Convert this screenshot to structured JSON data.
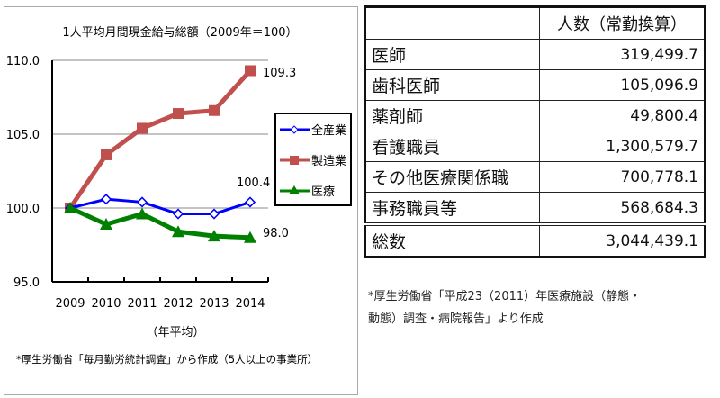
{
  "chart_data": {
    "type": "line",
    "title": "1人平均月間現金給与総額（2009年＝100）",
    "xlabel": "（年平均）",
    "categories": [
      "2009",
      "2010",
      "2011",
      "2012",
      "2013",
      "2014"
    ],
    "ylim": [
      95,
      110
    ],
    "yticks": [
      "95.0",
      "100.0",
      "105.0",
      "110.0"
    ],
    "grid": true,
    "legend_position": "right",
    "series": [
      {
        "name": "全産業",
        "color": "#0000ff",
        "marker": "diamond",
        "values": [
          100.0,
          100.6,
          100.4,
          99.6,
          99.6,
          100.4
        ],
        "end_label": "100.4"
      },
      {
        "name": "製造業",
        "color": "#c0504d",
        "marker": "square",
        "values": [
          100.0,
          103.6,
          105.4,
          106.4,
          106.6,
          109.3
        ],
        "end_label": "109.3"
      },
      {
        "name": "医療",
        "color": "#008000",
        "marker": "triangle",
        "values": [
          100.0,
          98.9,
          99.6,
          98.4,
          98.1,
          98.0
        ],
        "end_label": "98.0"
      }
    ],
    "source": "*厚生労働省「毎月勤労統計調査」から作成（5人以上の事業所）"
  },
  "table": {
    "header": "人数（常勤換算）",
    "rows": [
      {
        "label": "医師",
        "value": "319,499.7"
      },
      {
        "label": "歯科医師",
        "value": "105,096.9"
      },
      {
        "label": "薬剤師",
        "value": "49,800.4"
      },
      {
        "label": "看護職員",
        "value": "1,300,579.7"
      },
      {
        "label": "その他医療関係職",
        "value": "700,778.1"
      },
      {
        "label": "事務職員等",
        "value": "568,684.3"
      }
    ],
    "total": {
      "label": "総数",
      "value": "3,044,439.1"
    },
    "source_line1": "*厚生労働省「平成23（2011）年医療施設（静態・",
    "source_line2": "動態）調査・病院報告」より作成"
  }
}
